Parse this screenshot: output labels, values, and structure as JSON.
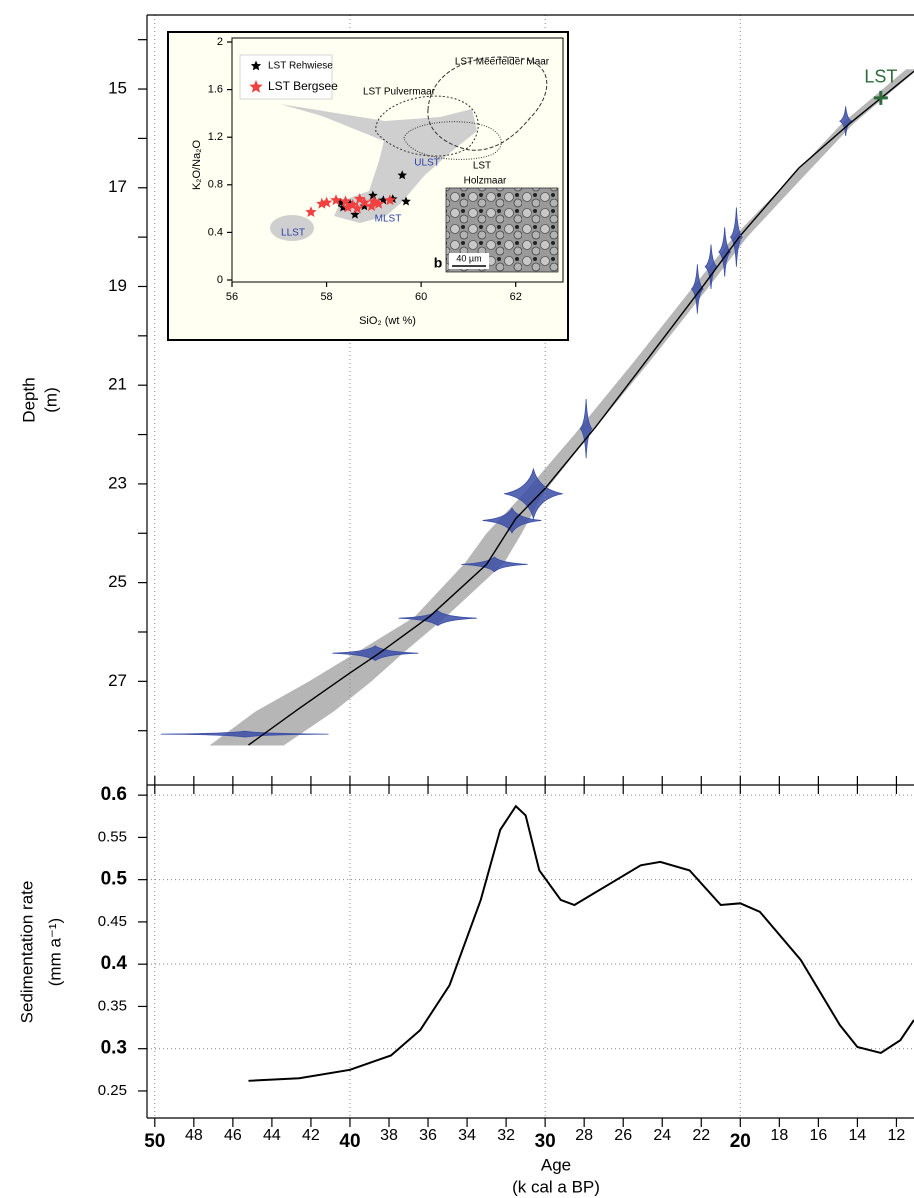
{
  "chart_data": [
    {
      "type": "age_depth",
      "y_label": [
        "Depth",
        "(m)"
      ],
      "xlim": [
        50.4,
        11.1
      ],
      "ylim": [
        13.5,
        29.1
      ],
      "yticks": [
        15,
        17,
        19,
        21,
        23,
        25,
        27
      ],
      "yminor": [
        14,
        16,
        18,
        20,
        22,
        24,
        26,
        28
      ],
      "envelope": {
        "color": "#a9a9a9",
        "depth": [
          14.6,
          15.7,
          17,
          18,
          19,
          20.5,
          22,
          23.2,
          24,
          24.6,
          25.7,
          26.4,
          27,
          27.6,
          28.3
        ],
        "old": [
          11.5,
          14.8,
          17.9,
          20.35,
          22.4,
          25.4,
          28.5,
          31.1,
          33.0,
          34.1,
          36.7,
          39.6,
          42.1,
          44.8,
          47.2
        ],
        "young": [
          10.9,
          14.2,
          17.3,
          19.65,
          21.6,
          24.6,
          27.7,
          30.1,
          31.2,
          32.1,
          35.1,
          37.2,
          38.9,
          40.8,
          43.4
        ]
      },
      "model": {
        "color": "#000000",
        "age": [
          45.2,
          42.6,
          40,
          38.5,
          35.9,
          33,
          31.5,
          30,
          27.4,
          25,
          22,
          20,
          17,
          14.4,
          11.1
        ],
        "depth": [
          28.29,
          27.55,
          26.83,
          26.43,
          25.68,
          24.63,
          23.7,
          23.09,
          21.84,
          20.6,
          19.04,
          17.97,
          16.6,
          15.7,
          14.64
        ]
      },
      "dates": {
        "color": "#3b4ea6",
        "age": [
          14.6,
          20.2,
          20.8,
          21.5,
          22.2,
          27.9,
          30.6,
          31.7,
          32.6,
          35.5,
          38.7,
          45.4
        ],
        "depth": [
          15.65,
          18.0,
          18.3,
          18.6,
          19.05,
          21.88,
          23.2,
          23.74,
          24.63,
          25.72,
          26.43,
          28.07
        ],
        "age_sd": [
          0.3,
          0.3,
          0.3,
          0.3,
          0.3,
          0.3,
          1.5,
          1.5,
          1.7,
          2.0,
          2.2,
          4.3
        ],
        "depth_sd": [
          0.3,
          0.6,
          0.5,
          0.45,
          0.5,
          0.6,
          0.5,
          0.25,
          0.15,
          0.15,
          0.15,
          0.06
        ]
      },
      "marker": {
        "label": "LST",
        "age": 12.8,
        "depth": 15.18,
        "color": "#2e6b3a"
      }
    },
    {
      "type": "line",
      "y_label": [
        "Sedimentation rate",
        "(mm a⁻¹)"
      ],
      "x_label": [
        "Age",
        "(k cal a BP)"
      ],
      "xlim": [
        50.4,
        11.1
      ],
      "xticks": [
        50,
        48,
        46,
        44,
        42,
        40,
        38,
        36,
        34,
        32,
        30,
        28,
        26,
        24,
        22,
        20,
        18,
        16,
        14,
        12
      ],
      "ylim": [
        0.218,
        0.612
      ],
      "yticks": [
        0.25,
        0.3,
        0.35,
        0.4,
        0.45,
        0.5,
        0.55,
        0.6
      ],
      "grid": true,
      "color": "#000000",
      "x": [
        45.2,
        42.6,
        40,
        37.9,
        36.4,
        34.9,
        33.3,
        32.3,
        31.5,
        31.0,
        30.3,
        29.2,
        28.5,
        27.2,
        25.1,
        24.1,
        22.6,
        21.0,
        20,
        19.0,
        16.9,
        14.9,
        14.0,
        12.8,
        11.8,
        11.1
      ],
      "values": [
        0.262,
        0.265,
        0.275,
        0.292,
        0.322,
        0.375,
        0.476,
        0.559,
        0.587,
        0.576,
        0.511,
        0.476,
        0.47,
        0.488,
        0.517,
        0.521,
        0.511,
        0.47,
        0.472,
        0.462,
        0.405,
        0.328,
        0.302,
        0.295,
        0.31,
        0.334
      ]
    },
    {
      "type": "scatter",
      "x_label": "SiO₂ (wt %)",
      "y_label": "K₂O/Na₂O",
      "xlim": [
        56,
        63
      ],
      "ylim": [
        0,
        2
      ],
      "xticks": [
        56,
        58,
        60,
        62
      ],
      "yticks": [
        0,
        0.4,
        0.8,
        1.2,
        1.6,
        2
      ],
      "legend": "top-left",
      "series": [
        {
          "name": "LST Rehwiese",
          "color": "#000000",
          "x": [
            58.35,
            58.6,
            58.98,
            59.6,
            59.68,
            58.5,
            59.2,
            58.8,
            59.4,
            58.3
          ],
          "values": [
            0.61,
            0.55,
            0.71,
            0.88,
            0.66,
            0.64,
            0.67,
            0.62,
            0.68,
            0.65
          ]
        },
        {
          "name": "LST Bergsee",
          "color": "#f04040",
          "x": [
            57.67,
            57.9,
            58.0,
            58.2,
            58.4,
            58.55,
            58.7,
            58.8,
            58.95,
            59.1,
            59.34,
            58.65,
            59.0,
            58.45
          ],
          "values": [
            0.57,
            0.64,
            0.65,
            0.67,
            0.66,
            0.63,
            0.68,
            0.65,
            0.62,
            0.64,
            0.67,
            0.6,
            0.66,
            0.61
          ]
        }
      ],
      "annotations": [
        {
          "text": "LST Meerfelder Maar",
          "color": "#000000"
        },
        {
          "text": "LST Pulvermaar",
          "color": "#000000"
        },
        {
          "text": "ULST",
          "color": "#2b3fa8"
        },
        {
          "text": "LST",
          "color": "#000000"
        },
        {
          "text": "Holzmaar",
          "color": "#000000"
        },
        {
          "text": "LLST",
          "color": "#2b3fa8"
        },
        {
          "text": "MLST",
          "color": "#2b3fa8"
        }
      ],
      "panel_label": "b",
      "scale_bar": "40 µm"
    }
  ]
}
